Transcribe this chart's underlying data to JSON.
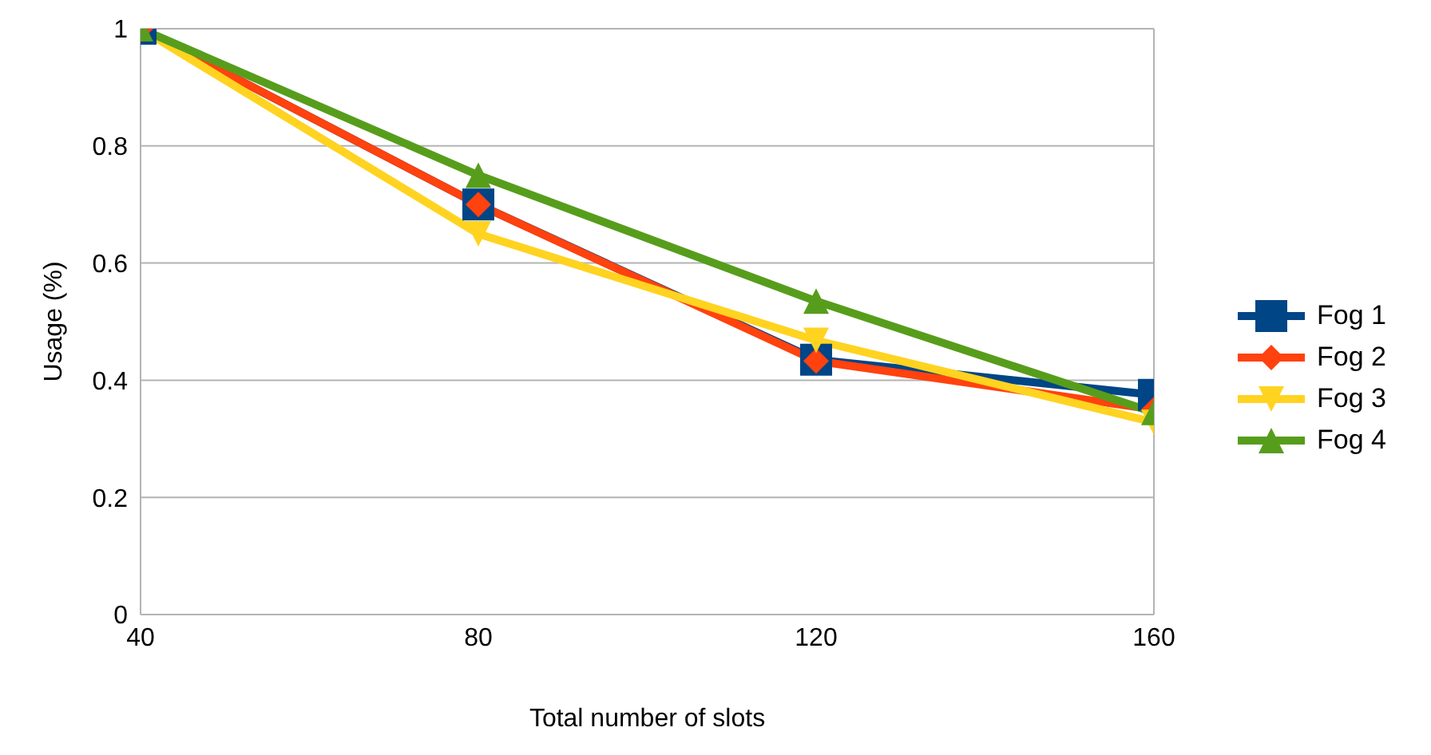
{
  "chart_data": {
    "type": "line",
    "xlabel": "Total number of slots",
    "ylabel": "Usage (%)",
    "x": [
      40,
      80,
      120,
      160
    ],
    "xlim": [
      40,
      160
    ],
    "xticks": [
      40,
      80,
      120,
      160
    ],
    "ylim": [
      0,
      1
    ],
    "yticks": [
      0,
      0.2,
      0.4,
      0.6,
      0.8,
      1
    ],
    "grid": "y",
    "legend": "right",
    "line_style": "solid",
    "series": [
      {
        "name": "Fog 1",
        "color": "#004586",
        "marker": "square",
        "values": [
          1,
          0.7,
          0.435,
          0.375
        ]
      },
      {
        "name": "Fog 2",
        "color": "#ff420e",
        "marker": "diamond",
        "values": [
          1,
          0.7,
          0.433,
          0.35
        ]
      },
      {
        "name": "Fog 3",
        "color": "#ffd320",
        "marker": "triangle-down",
        "values": [
          1,
          0.65,
          0.468,
          0.328
        ]
      },
      {
        "name": "Fog 4",
        "color": "#579d1c",
        "marker": "triangle",
        "values": [
          1,
          0.75,
          0.535,
          0.345
        ]
      }
    ]
  }
}
